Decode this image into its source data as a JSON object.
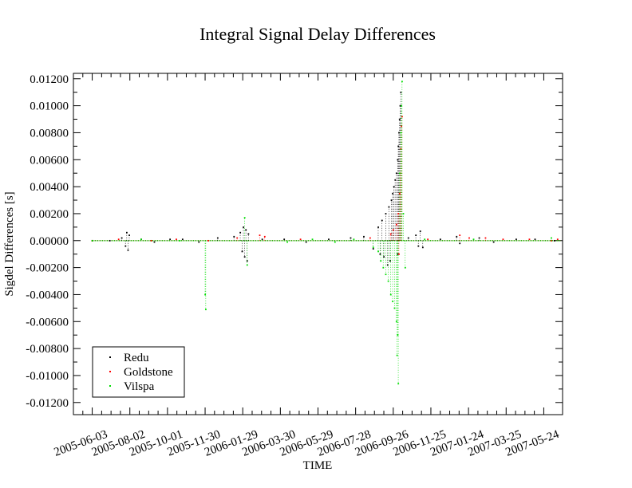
{
  "chart_data": {
    "type": "scatter",
    "title": "Integral Signal Delay Differences",
    "xlabel": "TIME",
    "ylabel": "Sigdel Differences [s]",
    "x_start": "2005-05-04",
    "x_end": "2007-06-23",
    "ylim": [
      -0.0129,
      0.0124
    ],
    "x_ticks": [
      "2005-06-03",
      "2005-08-02",
      "2005-10-01",
      "2005-11-30",
      "2006-01-29",
      "2006-03-30",
      "2006-05-29",
      "2006-07-28",
      "2006-09-26",
      "2006-11-25",
      "2007-01-24",
      "2007-03-25",
      "2007-05-24"
    ],
    "y_ticks": [
      0.012,
      0.01,
      0.008,
      0.006,
      0.004,
      0.002,
      0.0,
      -0.002,
      -0.004,
      -0.006,
      -0.008,
      -0.01,
      -0.012
    ],
    "y_tick_labels": [
      "0.01200",
      "0.01000",
      "0.00800",
      "0.00600",
      "0.00400",
      "0.00200",
      "0.00000",
      "-0.00200",
      "-0.00400",
      "-0.00600",
      "-0.00800",
      "-0.01000",
      "-0.01200"
    ],
    "legend_position": "bottom-left",
    "series": [
      {
        "name": "Redu",
        "color": "#000000",
        "points": [
          [
            "2005-06-03",
            0.0
          ],
          [
            "2005-07-01",
            0.0
          ],
          [
            "2005-07-20",
            0.0002
          ],
          [
            "2005-07-26",
            -0.0004
          ],
          [
            "2005-07-28",
            0.0006
          ],
          [
            "2005-07-30",
            -0.0007
          ],
          [
            "2005-08-01",
            0.0004
          ],
          [
            "2005-08-20",
            0.0001
          ],
          [
            "2005-09-10",
            -0.0001
          ],
          [
            "2005-10-05",
            0.0001
          ],
          [
            "2005-10-25",
            0.0001
          ],
          [
            "2005-11-20",
            -0.0001
          ],
          [
            "2005-12-20",
            0.0002
          ],
          [
            "2006-01-15",
            0.0003
          ],
          [
            "2006-01-25",
            0.0006
          ],
          [
            "2006-01-28",
            -0.0008
          ],
          [
            "2006-01-30",
            0.001
          ],
          [
            "2006-02-01",
            -0.0012
          ],
          [
            "2006-02-03",
            0.0008
          ],
          [
            "2006-02-05",
            -0.0015
          ],
          [
            "2006-02-07",
            0.0005
          ],
          [
            "2006-03-01",
            0.0001
          ],
          [
            "2006-04-05",
            0.0001
          ],
          [
            "2006-05-10",
            -0.0001
          ],
          [
            "2006-06-15",
            0.0001
          ],
          [
            "2006-07-20",
            0.0002
          ],
          [
            "2006-08-10",
            0.0003
          ],
          [
            "2006-08-25",
            -0.0006
          ],
          [
            "2006-09-02",
            0.001
          ],
          [
            "2006-09-05",
            -0.001
          ],
          [
            "2006-09-08",
            0.0015
          ],
          [
            "2006-09-11",
            -0.0012
          ],
          [
            "2006-09-14",
            0.002
          ],
          [
            "2006-09-17",
            -0.0018
          ],
          [
            "2006-09-19",
            0.0025
          ],
          [
            "2006-09-21",
            -0.0015
          ],
          [
            "2006-09-23",
            0.003
          ],
          [
            "2006-09-25",
            0.0035
          ],
          [
            "2006-09-27",
            0.004
          ],
          [
            "2006-09-29",
            0.0045
          ],
          [
            "2006-10-01",
            0.005
          ],
          [
            "2006-10-03",
            0.006
          ],
          [
            "2006-10-04",
            0.007
          ],
          [
            "2006-10-05",
            0.008
          ],
          [
            "2006-10-06",
            0.009
          ],
          [
            "2006-10-07",
            0.01
          ],
          [
            "2006-10-08",
            0.011
          ],
          [
            "2006-10-03",
            -0.001
          ],
          [
            "2006-10-20",
            0.0002
          ],
          [
            "2006-11-01",
            0.0004
          ],
          [
            "2006-11-05",
            -0.0004
          ],
          [
            "2006-11-08",
            0.0007
          ],
          [
            "2006-11-12",
            -0.0005
          ],
          [
            "2006-12-10",
            0.0001
          ],
          [
            "2007-01-05",
            0.0003
          ],
          [
            "2007-01-10",
            -0.0002
          ],
          [
            "2007-02-10",
            0.0002
          ],
          [
            "2007-03-05",
            -0.0001
          ],
          [
            "2007-04-10",
            0.0001
          ],
          [
            "2007-05-10",
            0.0001
          ],
          [
            "2007-06-10",
            0.0
          ]
        ]
      },
      {
        "name": "Goldstone",
        "color": "#ff0000",
        "points": [
          [
            "2005-06-03",
            0.0
          ],
          [
            "2005-07-15",
            0.0001
          ],
          [
            "2005-09-05",
            0.0
          ],
          [
            "2005-10-15",
            0.0001
          ],
          [
            "2005-12-05",
            0.0
          ],
          [
            "2006-01-20",
            0.0002
          ],
          [
            "2006-02-25",
            0.0004
          ],
          [
            "2006-03-05",
            0.0003
          ],
          [
            "2006-05-01",
            0.0001
          ],
          [
            "2006-08-20",
            0.0002
          ],
          [
            "2006-09-22",
            0.0005
          ],
          [
            "2006-09-26",
            0.0008
          ],
          [
            "2006-10-01",
            0.0012
          ],
          [
            "2006-10-04",
            0.002
          ],
          [
            "2006-10-06",
            0.0035
          ],
          [
            "2006-10-07",
            0.005
          ],
          [
            "2006-10-08",
            0.0068
          ],
          [
            "2006-10-09",
            0.0085
          ],
          [
            "2006-10-10",
            0.0092
          ],
          [
            "2006-10-05",
            -0.001
          ],
          [
            "2006-11-20",
            0.0001
          ],
          [
            "2007-01-10",
            0.0004
          ],
          [
            "2007-01-25",
            0.0002
          ],
          [
            "2007-02-20",
            0.0002
          ],
          [
            "2007-03-20",
            0.0001
          ],
          [
            "2007-05-01",
            0.0001
          ],
          [
            "2007-06-05",
            0.0
          ],
          [
            "2007-06-15",
            0.0001
          ]
        ]
      },
      {
        "name": "Vilspa",
        "color": "#00dd00",
        "points": [
          [
            "2005-06-03",
            0.0
          ],
          [
            "2005-08-20",
            0.0001
          ],
          [
            "2005-10-20",
            0.0
          ],
          [
            "2005-11-30",
            -0.004
          ],
          [
            "2005-12-01",
            -0.0051
          ],
          [
            "2006-02-01",
            0.0017
          ],
          [
            "2006-02-05",
            -0.0018
          ],
          [
            "2006-04-10",
            -0.0001
          ],
          [
            "2006-05-20",
            0.0001
          ],
          [
            "2006-06-25",
            -0.0001
          ],
          [
            "2006-07-25",
            0.0001
          ],
          [
            "2006-08-25",
            -0.0005
          ],
          [
            "2006-09-02",
            -0.0008
          ],
          [
            "2006-09-06",
            -0.0015
          ],
          [
            "2006-09-10",
            -0.002
          ],
          [
            "2006-09-14",
            -0.0025
          ],
          [
            "2006-09-18",
            -0.003
          ],
          [
            "2006-09-22",
            -0.004
          ],
          [
            "2006-09-25",
            -0.0045
          ],
          [
            "2006-09-28",
            -0.005
          ],
          [
            "2006-10-01",
            -0.006
          ],
          [
            "2006-10-03",
            -0.007
          ],
          [
            "2006-10-02",
            -0.0085
          ],
          [
            "2006-10-04",
            -0.0106
          ],
          [
            "2006-10-06",
            0.005
          ],
          [
            "2006-10-08",
            0.008
          ],
          [
            "2006-10-09",
            0.01
          ],
          [
            "2006-10-10",
            0.0118
          ],
          [
            "2006-10-12",
            0.002
          ],
          [
            "2006-10-15",
            -0.002
          ],
          [
            "2006-11-15",
            0.0001
          ],
          [
            "2007-02-01",
            0.0001
          ],
          [
            "2007-06-05",
            0.0002
          ]
        ]
      }
    ]
  }
}
